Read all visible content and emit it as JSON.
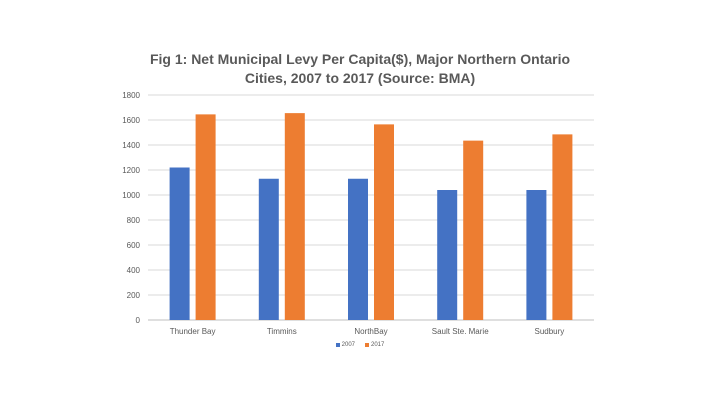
{
  "chart_data": {
    "type": "bar",
    "title_lines": [
      "Fig 1: Net Municipal Levy Per Capita($), Major Northern Ontario",
      "Cities, 2007 to 2017 (Source: BMA)"
    ],
    "categories": [
      "Thunder Bay",
      "Timmins",
      "NorthBay",
      "Sault Ste. Marie",
      "Sudbury"
    ],
    "series": [
      {
        "name": "2007",
        "color": "#4472C4",
        "values": [
          1220,
          1130,
          1130,
          1040,
          1040
        ]
      },
      {
        "name": "2017",
        "color": "#ED7D31",
        "values": [
          1645,
          1655,
          1565,
          1435,
          1485
        ]
      }
    ],
    "ylim": [
      0,
      1800
    ],
    "yticks": [
      0,
      200,
      400,
      600,
      800,
      1000,
      1200,
      1400,
      1600,
      1800
    ],
    "grid": true,
    "legend_position": "bottom"
  }
}
